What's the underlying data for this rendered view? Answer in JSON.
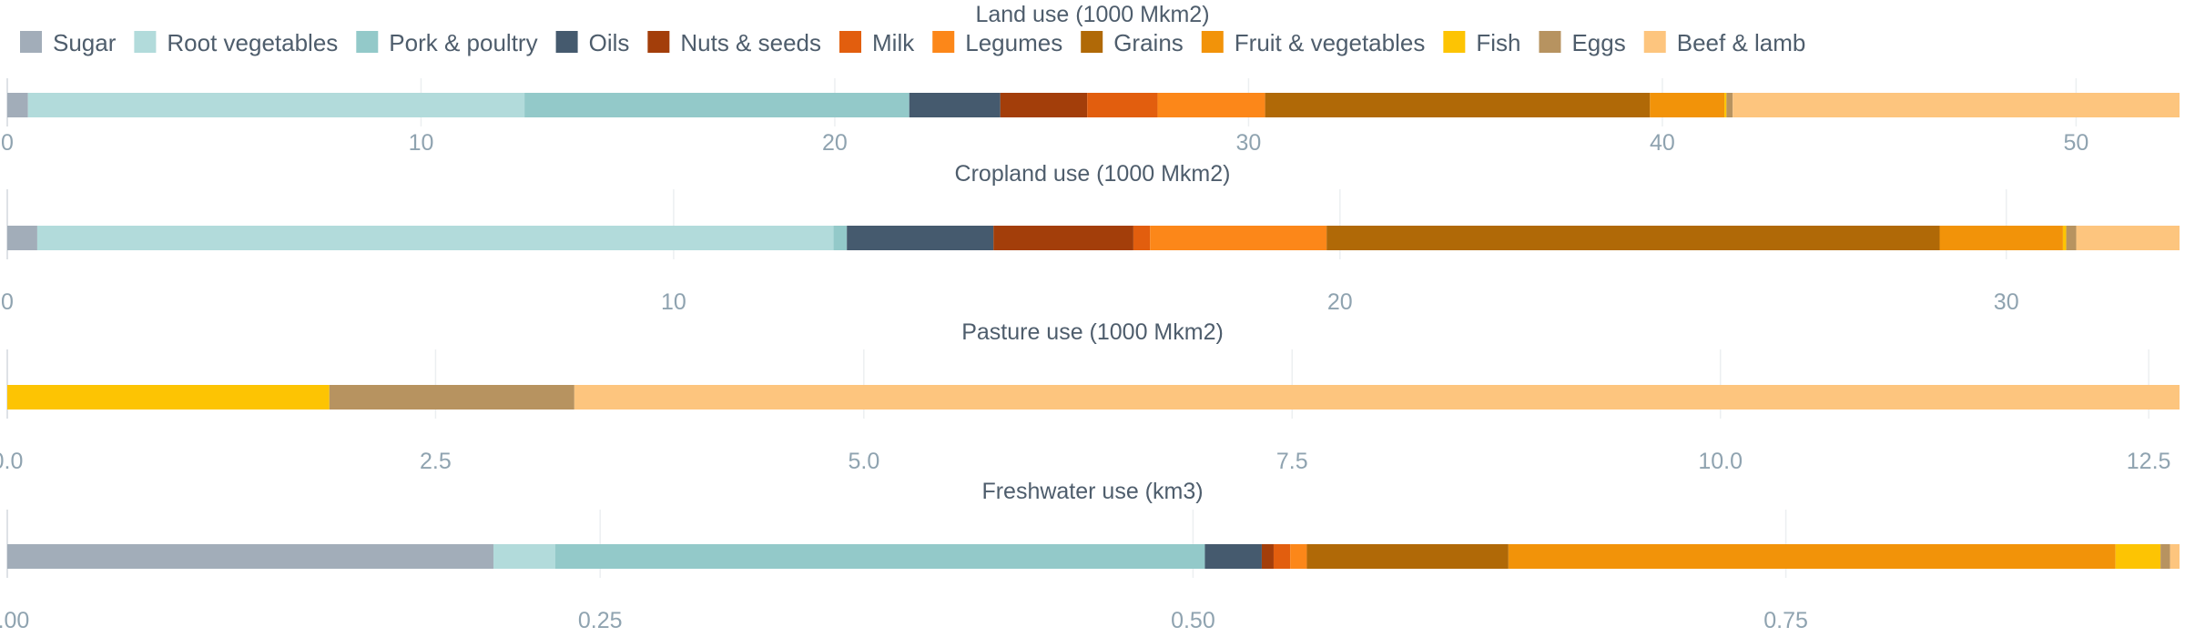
{
  "legend": {
    "items": [
      {
        "name": "Sugar",
        "color": "#a2adb9"
      },
      {
        "name": "Root vegetables",
        "color": "#b2dbdb"
      },
      {
        "name": "Pork & poultry",
        "color": "#93c9c9"
      },
      {
        "name": "Oils",
        "color": "#455a6e"
      },
      {
        "name": "Nuts & seeds",
        "color": "#a33e0a"
      },
      {
        "name": "Milk",
        "color": "#e25e0e"
      },
      {
        "name": "Legumes",
        "color": "#fc8719"
      },
      {
        "name": "Grains",
        "color": "#b06907"
      },
      {
        "name": "Fruit & vegetables",
        "color": "#f29309"
      },
      {
        "name": "Fish",
        "color": "#fdc403"
      },
      {
        "name": "Eggs",
        "color": "#b79360"
      },
      {
        "name": "Beef & lamb",
        "color": "#fdc57e"
      }
    ]
  },
  "chart_data": [
    {
      "type": "bar",
      "orientation": "horizontal-stacked",
      "title": "Land use (1000 Mkm2)",
      "xlim": [
        0,
        52.5
      ],
      "ticks": [
        0,
        10,
        20,
        30,
        40,
        50
      ],
      "tick_labels": [
        "0",
        "10",
        "20",
        "30",
        "40",
        "50"
      ],
      "grid": true,
      "series": [
        {
          "name": "Sugar",
          "value": 0.5
        },
        {
          "name": "Root vegetables",
          "value": 12.0
        },
        {
          "name": "Pork & poultry",
          "value": 9.3
        },
        {
          "name": "Oils",
          "value": 2.2
        },
        {
          "name": "Nuts & seeds",
          "value": 2.1
        },
        {
          "name": "Milk",
          "value": 1.7
        },
        {
          "name": "Legumes",
          "value": 2.6
        },
        {
          "name": "Grains",
          "value": 9.3
        },
        {
          "name": "Fruit & vegetables",
          "value": 1.8
        },
        {
          "name": "Fish",
          "value": 0.05
        },
        {
          "name": "Eggs",
          "value": 0.15
        },
        {
          "name": "Beef & lamb",
          "value": 10.8
        }
      ]
    },
    {
      "type": "bar",
      "orientation": "horizontal-stacked",
      "title": "Cropland use (1000 Mkm2)",
      "xlim": [
        0,
        32.6
      ],
      "ticks": [
        0,
        10,
        20,
        30
      ],
      "tick_labels": [
        "0",
        "10",
        "20",
        "30"
      ],
      "grid": true,
      "series": [
        {
          "name": "Sugar",
          "value": 0.45
        },
        {
          "name": "Root vegetables",
          "value": 11.95
        },
        {
          "name": "Pork & poultry",
          "value": 0.2
        },
        {
          "name": "Oils",
          "value": 2.2
        },
        {
          "name": "Nuts & seeds",
          "value": 2.1
        },
        {
          "name": "Milk",
          "value": 0.25
        },
        {
          "name": "Legumes",
          "value": 2.65
        },
        {
          "name": "Grains",
          "value": 9.2
        },
        {
          "name": "Fruit & vegetables",
          "value": 1.85
        },
        {
          "name": "Fish",
          "value": 0.05
        },
        {
          "name": "Eggs",
          "value": 0.15
        },
        {
          "name": "Beef & lamb",
          "value": 1.6
        }
      ]
    },
    {
      "type": "bar",
      "orientation": "horizontal-stacked",
      "title": "Pasture use (1000 Mkm2)",
      "xlim": [
        0,
        12.68
      ],
      "ticks": [
        0,
        2.5,
        5,
        7.5,
        10,
        12.5
      ],
      "tick_labels": [
        "0.0",
        "2.5",
        "5.0",
        "7.5",
        "10.0",
        "12.5"
      ],
      "grid": true,
      "series": [
        {
          "name": "Fish",
          "value": 1.88
        },
        {
          "name": "Eggs",
          "value": 1.43
        },
        {
          "name": "Beef & lamb",
          "value": 9.37
        }
      ]
    },
    {
      "type": "bar",
      "orientation": "horizontal-stacked",
      "title": "Freshwater use (km3)",
      "xlim": [
        0,
        0.916
      ],
      "ticks": [
        0,
        0.25,
        0.5,
        0.75
      ],
      "tick_labels": [
        "0.00",
        "0.25",
        "0.50",
        "0.75"
      ],
      "grid": true,
      "series": [
        {
          "name": "Sugar",
          "value": 0.205
        },
        {
          "name": "Root vegetables",
          "value": 0.026
        },
        {
          "name": "Pork & poultry",
          "value": 0.274
        },
        {
          "name": "Oils",
          "value": 0.024
        },
        {
          "name": "Nuts & seeds",
          "value": 0.005
        },
        {
          "name": "Milk",
          "value": 0.007
        },
        {
          "name": "Legumes",
          "value": 0.007
        },
        {
          "name": "Grains",
          "value": 0.085
        },
        {
          "name": "Fruit & vegetables",
          "value": 0.256
        },
        {
          "name": "Fish",
          "value": 0.019
        },
        {
          "name": "Eggs",
          "value": 0.004
        },
        {
          "name": "Beef & lamb",
          "value": 0.004
        }
      ]
    }
  ]
}
